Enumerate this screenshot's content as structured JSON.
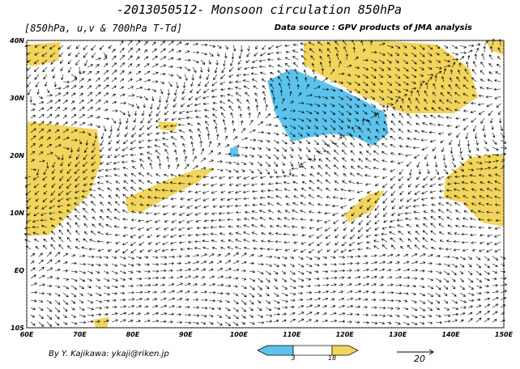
{
  "title": "-2013050512- Monsoon circulation 850hPa",
  "subtitle": "[850hPa, u,v & 700hPa T-Td]",
  "source": "Data source : GPV products of JMA analysis",
  "author": "By Y. Kajikawa: ykaji@riken.jp",
  "map": {
    "lonlim": [
      60,
      150
    ],
    "latlim": [
      -10,
      40
    ],
    "lon_ticks": [
      {
        "value": 60,
        "label": "60E"
      },
      {
        "value": 70,
        "label": "70E"
      },
      {
        "value": 80,
        "label": "80E"
      },
      {
        "value": 90,
        "label": "90E"
      },
      {
        "value": 100,
        "label": "100E"
      },
      {
        "value": 110,
        "label": "110E"
      },
      {
        "value": 120,
        "label": "120E"
      },
      {
        "value": 130,
        "label": "130E"
      },
      {
        "value": 140,
        "label": "140E"
      },
      {
        "value": 150,
        "label": "150E"
      }
    ],
    "lat_ticks": [
      {
        "value": -10,
        "label": "10S"
      },
      {
        "value": 0,
        "label": "EQ"
      },
      {
        "value": 10,
        "label": "10N"
      },
      {
        "value": 20,
        "label": "20N"
      },
      {
        "value": 30,
        "label": "30N"
      },
      {
        "value": 40,
        "label": "40N"
      }
    ]
  },
  "colorbar": {
    "ticks": [
      3,
      18
    ]
  },
  "reference_vector": {
    "value": 20
  }
}
